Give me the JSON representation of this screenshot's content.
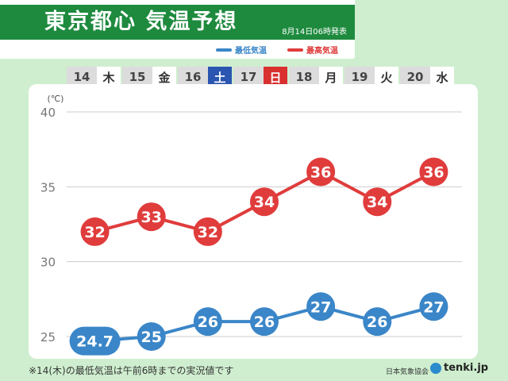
{
  "header": {
    "title": "東京都心 気温予想",
    "issued": "8月14日06時発表"
  },
  "legend": {
    "min_label": "最低気温",
    "max_label": "最高気温"
  },
  "days": [
    {
      "num": "14",
      "weekday": "木",
      "kind": "weekday"
    },
    {
      "num": "15",
      "weekday": "金",
      "kind": "weekday"
    },
    {
      "num": "16",
      "weekday": "土",
      "kind": "sat"
    },
    {
      "num": "17",
      "weekday": "日",
      "kind": "sun"
    },
    {
      "num": "18",
      "weekday": "月",
      "kind": "weekday"
    },
    {
      "num": "19",
      "weekday": "火",
      "kind": "weekday"
    },
    {
      "num": "20",
      "weekday": "水",
      "kind": "weekday"
    }
  ],
  "chart_data": {
    "type": "line",
    "categories": [
      "14",
      "15",
      "16",
      "17",
      "18",
      "19",
      "20"
    ],
    "unit": "(℃)",
    "ylim": [
      25,
      40
    ],
    "yticks": [
      25,
      30,
      35,
      40
    ],
    "grid": true,
    "legend_position": "top-right",
    "series": [
      {
        "name": "最高気温",
        "color": "#e03c3c",
        "values": [
          32,
          33,
          32,
          34,
          36,
          34,
          36
        ],
        "labels": [
          "32",
          "33",
          "32",
          "34",
          "36",
          "34",
          "36"
        ]
      },
      {
        "name": "最低気温",
        "color": "#3a86c8",
        "values": [
          24.7,
          25,
          26,
          26,
          27,
          26,
          27
        ],
        "labels": [
          "24.7",
          "25",
          "26",
          "26",
          "27",
          "26",
          "27"
        ]
      }
    ]
  },
  "footer": {
    "note": "※14(木)の最低気温は午前6時までの実況値です",
    "org": "日本気象協会",
    "brand": "tenki.jp"
  }
}
